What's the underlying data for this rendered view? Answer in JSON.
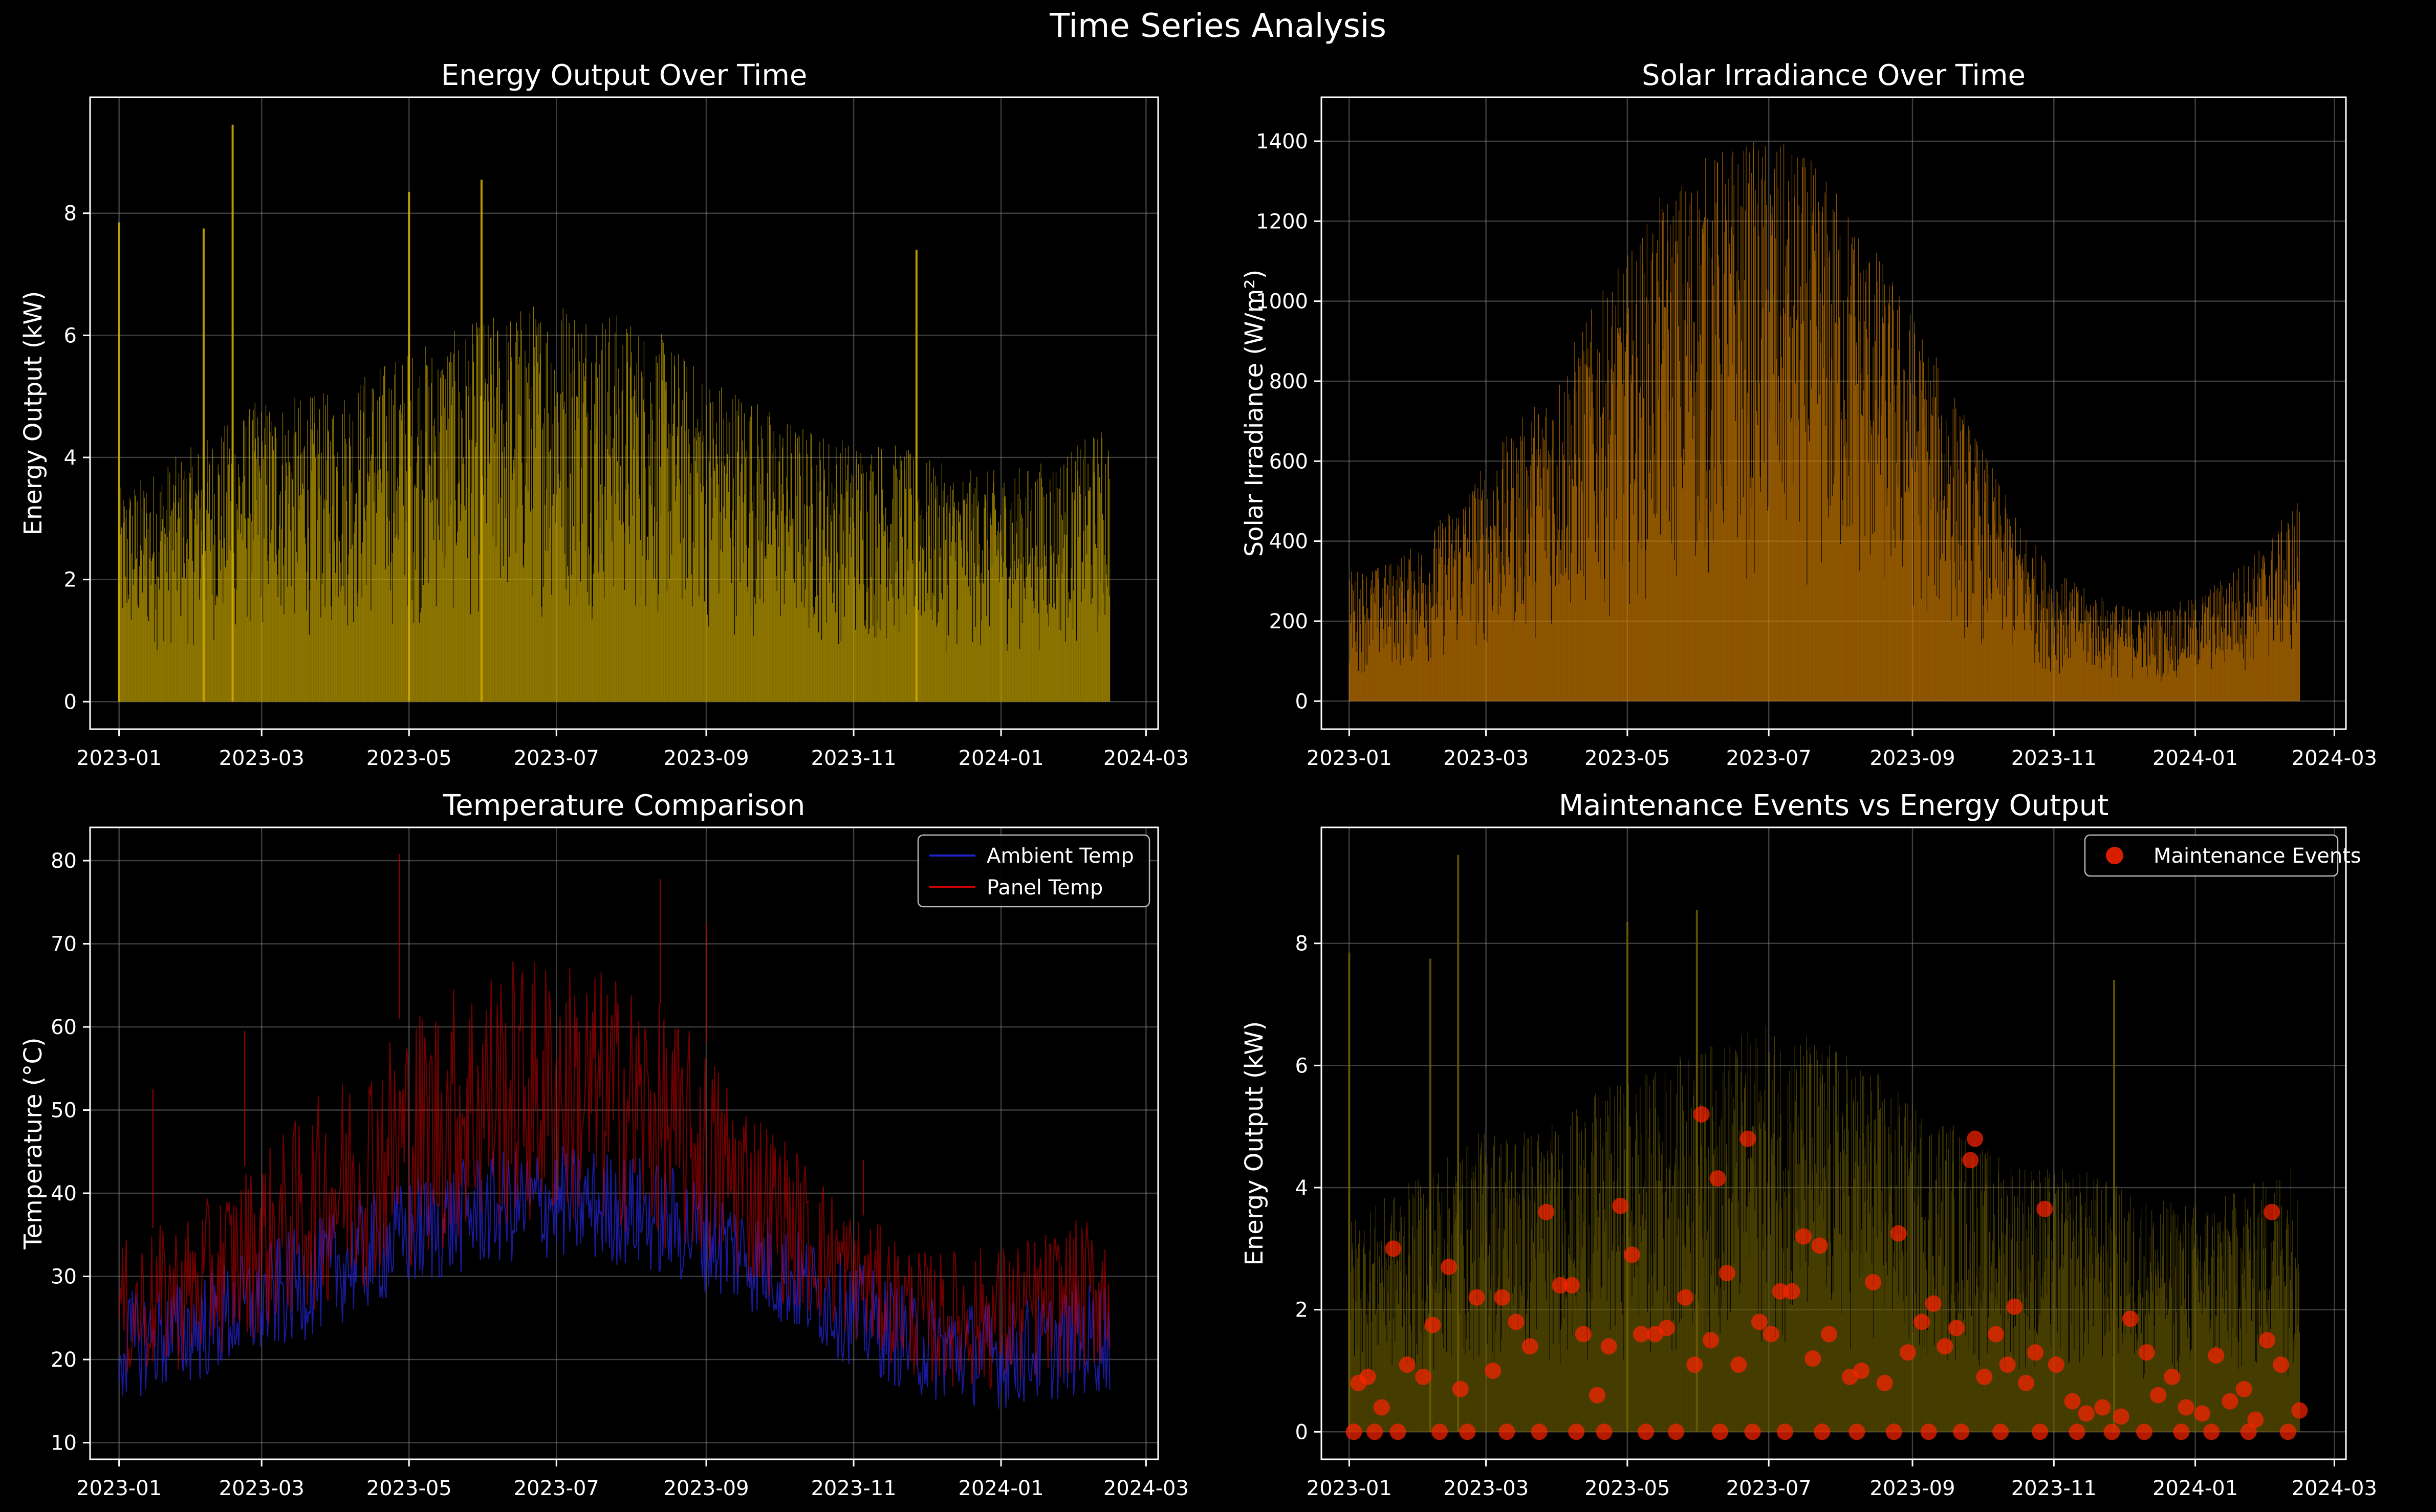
{
  "figure": {
    "title": "Time Series Analysis",
    "background": "#000000",
    "grid_color": "#888888",
    "text_color": "#ffffff"
  },
  "chart_data": [
    {
      "id": "energy",
      "type": "bar",
      "title": "Energy Output Over Time",
      "xlabel": "",
      "ylabel": "Energy Output (kW)",
      "x_range": [
        "2022-12-20",
        "2024-03-06"
      ],
      "xticks": [
        "2023-01",
        "2023-03",
        "2023-05",
        "2023-07",
        "2023-09",
        "2023-11",
        "2024-01",
        "2024-03"
      ],
      "ylim": [
        -0.45,
        9.9
      ],
      "yticks": [
        0,
        2,
        4,
        6,
        8
      ],
      "grid": true,
      "color": "#ccaa00",
      "series": [
        {
          "dates": [
            "2023-01-01",
            "2023-01-15",
            "2023-02-01",
            "2023-02-15",
            "2023-03-01",
            "2023-03-15",
            "2023-04-01",
            "2023-04-15",
            "2023-05-01",
            "2023-05-15",
            "2023-06-01",
            "2023-06-15",
            "2023-07-01",
            "2023-07-15",
            "2023-08-01",
            "2023-08-15",
            "2023-09-01",
            "2023-09-15",
            "2023-10-01",
            "2023-10-15",
            "2023-11-01",
            "2023-11-15",
            "2023-12-01",
            "2023-12-15",
            "2024-01-01",
            "2024-01-15",
            "2024-02-01",
            "2024-02-15"
          ],
          "values": [
            3.5,
            3.8,
            4.2,
            4.6,
            5.0,
            5.0,
            5.1,
            5.5,
            5.8,
            6.0,
            6.3,
            6.5,
            6.7,
            6.6,
            6.3,
            6.0,
            5.4,
            5.2,
            4.7,
            4.5,
            4.3,
            4.3,
            4.0,
            3.8,
            3.8,
            3.9,
            4.2,
            4.6
          ],
          "spikes": [
            [
              "2023-01-01",
              7.85
            ],
            [
              "2023-02-05",
              7.75
            ],
            [
              "2023-02-17",
              9.45
            ],
            [
              "2023-05-01",
              8.35
            ],
            [
              "2023-05-31",
              8.55
            ],
            [
              "2023-11-27",
              7.4
            ]
          ]
        }
      ]
    },
    {
      "id": "irradiance",
      "type": "bar",
      "title": "Solar Irradiance Over Time",
      "xlabel": "",
      "ylabel": "Solar Irradiance (W/m²)",
      "x_range": [
        "2022-12-20",
        "2024-03-06"
      ],
      "xticks": [
        "2023-01",
        "2023-03",
        "2023-05",
        "2023-07",
        "2023-09",
        "2023-11",
        "2024-01",
        "2024-03"
      ],
      "ylim": [
        -70,
        1510
      ],
      "yticks": [
        0,
        200,
        400,
        600,
        800,
        1000,
        1200,
        1400
      ],
      "grid": true,
      "color": "#cc7a00",
      "series": [
        {
          "dates": [
            "2023-01-01",
            "2023-01-15",
            "2023-02-01",
            "2023-02-15",
            "2023-03-01",
            "2023-03-15",
            "2023-04-01",
            "2023-04-15",
            "2023-05-01",
            "2023-05-15",
            "2023-06-01",
            "2023-06-15",
            "2023-07-01",
            "2023-07-15",
            "2023-08-01",
            "2023-08-15",
            "2023-09-01",
            "2023-09-15",
            "2023-10-01",
            "2023-10-15",
            "2023-11-01",
            "2023-11-15",
            "2023-12-01",
            "2023-12-15",
            "2024-01-01",
            "2024-01-15",
            "2024-02-01",
            "2024-02-15"
          ],
          "values": [
            330,
            340,
            400,
            500,
            600,
            700,
            830,
            980,
            1120,
            1260,
            1360,
            1400,
            1410,
            1380,
            1280,
            1150,
            980,
            820,
            640,
            470,
            330,
            280,
            240,
            230,
            260,
            320,
            400,
            520
          ]
        }
      ]
    },
    {
      "id": "temperature",
      "type": "line",
      "title": "Temperature Comparison",
      "xlabel": "",
      "ylabel": "Temperature (°C)",
      "x_range": [
        "2022-12-20",
        "2024-03-06"
      ],
      "xticks": [
        "2023-01",
        "2023-03",
        "2023-05",
        "2023-07",
        "2023-09",
        "2023-11",
        "2024-01",
        "2024-03"
      ],
      "ylim": [
        8,
        84
      ],
      "yticks": [
        10,
        20,
        30,
        40,
        50,
        60,
        70,
        80
      ],
      "grid": true,
      "legend_position": "top-right",
      "series": [
        {
          "name": "Ambient Temp",
          "color": "#2222cc",
          "dates": [
            "2023-01-01",
            "2023-02-01",
            "2023-03-01",
            "2023-04-01",
            "2023-05-01",
            "2023-06-01",
            "2023-07-01",
            "2023-08-01",
            "2023-09-01",
            "2023-10-01",
            "2023-11-01",
            "2023-12-01",
            "2024-01-01",
            "2024-02-15"
          ],
          "low": [
            15,
            17,
            20,
            24,
            28,
            31,
            32,
            31,
            28,
            24,
            19,
            15,
            14,
            16
          ],
          "high": [
            28,
            30,
            34,
            38,
            42,
            45,
            46,
            45,
            42,
            37,
            32,
            28,
            27,
            30
          ]
        },
        {
          "name": "Panel Temp",
          "color": "#cc0000",
          "dates": [
            "2023-01-01",
            "2023-02-01",
            "2023-03-01",
            "2023-04-01",
            "2023-05-01",
            "2023-06-01",
            "2023-07-01",
            "2023-08-01",
            "2023-09-01",
            "2023-10-01",
            "2023-11-01",
            "2023-12-01",
            "2024-01-01",
            "2024-02-15"
          ],
          "low": [
            17,
            19,
            23,
            27,
            31,
            35,
            36,
            35,
            31,
            27,
            22,
            17,
            16,
            19
          ],
          "high": [
            34,
            38,
            45,
            54,
            62,
            68,
            69,
            66,
            58,
            48,
            38,
            33,
            34,
            38
          ],
          "spikes": [
            [
              "2023-01-15",
              52.5
            ],
            [
              "2023-02-22",
              59.5
            ],
            [
              "2023-04-27",
              80.8
            ],
            [
              "2023-08-13",
              77.8
            ],
            [
              "2023-09-01",
              72.5
            ],
            [
              "2023-11-05",
              44
            ]
          ]
        }
      ]
    },
    {
      "id": "maintenance",
      "type": "scatter",
      "title": "Maintenance Events vs Energy Output",
      "xlabel": "",
      "ylabel": "Energy Output (kW)",
      "x_range": [
        "2022-12-20",
        "2024-03-06"
      ],
      "xticks": [
        "2023-01",
        "2023-03",
        "2023-05",
        "2023-07",
        "2023-09",
        "2023-11",
        "2024-01",
        "2024-03"
      ],
      "ylim": [
        -0.45,
        9.9
      ],
      "yticks": [
        0,
        2,
        4,
        6,
        8
      ],
      "grid": true,
      "legend_position": "top-right",
      "background_series_color": "#6b5e00",
      "series": [
        {
          "name": "Maintenance Events",
          "color": "#ff2200",
          "points": [
            [
              "2023-01-20",
              3.0
            ],
            [
              "2023-02-06",
              1.75
            ],
            [
              "2023-02-13",
              2.7
            ],
            [
              "2023-02-25",
              2.2
            ],
            [
              "2023-03-08",
              2.2
            ],
            [
              "2023-03-27",
              3.6
            ],
            [
              "2023-04-02",
              2.4
            ],
            [
              "2023-04-07",
              2.4
            ],
            [
              "2023-04-28",
              3.7
            ],
            [
              "2023-05-07",
              1.6
            ],
            [
              "2023-05-13",
              1.6
            ],
            [
              "2023-05-26",
              2.2
            ],
            [
              "2023-06-02",
              5.2
            ],
            [
              "2023-06-09",
              4.15
            ],
            [
              "2023-06-22",
              4.8
            ],
            [
              "2023-07-06",
              2.3
            ],
            [
              "2023-07-16",
              3.2
            ],
            [
              "2023-07-23",
              3.05
            ],
            [
              "2023-08-15",
              2.45
            ],
            [
              "2023-08-26",
              3.25
            ],
            [
              "2023-09-10",
              2.1
            ],
            [
              "2023-09-26",
              4.45
            ],
            [
              "2023-09-28",
              4.8
            ],
            [
              "2023-10-15",
              2.05
            ],
            [
              "2023-10-28",
              3.65
            ],
            [
              "2023-12-04",
              1.85
            ],
            [
              "2023-12-11",
              1.3
            ],
            [
              "2024-01-10",
              1.25
            ],
            [
              "2024-02-01",
              1.5
            ],
            [
              "2024-02-03",
              3.6
            ],
            [
              "2024-02-15",
              0.35
            ],
            [
              "2023-01-05",
              0.8
            ],
            [
              "2023-01-09",
              0.9
            ],
            [
              "2023-01-15",
              0.4
            ],
            [
              "2023-01-26",
              1.1
            ],
            [
              "2023-02-02",
              0.9
            ],
            [
              "2023-02-18",
              0.7
            ],
            [
              "2023-03-04",
              1.0
            ],
            [
              "2023-03-14",
              1.8
            ],
            [
              "2023-03-20",
              1.4
            ],
            [
              "2023-04-12",
              1.6
            ],
            [
              "2023-04-18",
              0.6
            ],
            [
              "2023-04-23",
              1.4
            ],
            [
              "2023-05-03",
              2.9
            ],
            [
              "2023-05-18",
              1.7
            ],
            [
              "2023-05-30",
              1.1
            ],
            [
              "2023-06-06",
              1.5
            ],
            [
              "2023-06-13",
              2.6
            ],
            [
              "2023-06-18",
              1.1
            ],
            [
              "2023-06-27",
              1.8
            ],
            [
              "2023-07-02",
              1.6
            ],
            [
              "2023-07-11",
              2.3
            ],
            [
              "2023-07-20",
              1.2
            ],
            [
              "2023-07-27",
              1.6
            ],
            [
              "2023-08-05",
              0.9
            ],
            [
              "2023-08-10",
              1.0
            ],
            [
              "2023-08-20",
              0.8
            ],
            [
              "2023-08-30",
              1.3
            ],
            [
              "2023-09-05",
              1.8
            ],
            [
              "2023-09-15",
              1.4
            ],
            [
              "2023-09-20",
              1.7
            ],
            [
              "2023-10-02",
              0.9
            ],
            [
              "2023-10-07",
              1.6
            ],
            [
              "2023-10-12",
              1.1
            ],
            [
              "2023-10-20",
              0.8
            ],
            [
              "2023-10-24",
              1.3
            ],
            [
              "2023-11-02",
              1.1
            ],
            [
              "2023-11-09",
              0.5
            ],
            [
              "2023-11-15",
              0.3
            ],
            [
              "2023-11-22",
              0.4
            ],
            [
              "2023-11-30",
              0.25
            ],
            [
              "2023-12-16",
              0.6
            ],
            [
              "2023-12-22",
              0.9
            ],
            [
              "2023-12-28",
              0.4
            ],
            [
              "2024-01-04",
              0.3
            ],
            [
              "2024-01-16",
              0.5
            ],
            [
              "2024-01-22",
              0.7
            ],
            [
              "2024-01-27",
              0.2
            ],
            [
              "2024-02-07",
              1.1
            ],
            [
              "2023-01-03",
              0.0
            ],
            [
              "2023-01-12",
              0.0
            ],
            [
              "2023-01-22",
              0.0
            ],
            [
              "2023-02-09",
              0.0
            ],
            [
              "2023-02-21",
              0.0
            ],
            [
              "2023-03-10",
              0.0
            ],
            [
              "2023-03-24",
              0.0
            ],
            [
              "2023-04-09",
              0.0
            ],
            [
              "2023-04-21",
              0.0
            ],
            [
              "2023-05-09",
              0.0
            ],
            [
              "2023-05-22",
              0.0
            ],
            [
              "2023-06-10",
              0.0
            ],
            [
              "2023-06-24",
              0.0
            ],
            [
              "2023-07-08",
              0.0
            ],
            [
              "2023-07-24",
              0.0
            ],
            [
              "2023-08-08",
              0.0
            ],
            [
              "2023-08-24",
              0.0
            ],
            [
              "2023-09-08",
              0.0
            ],
            [
              "2023-09-22",
              0.0
            ],
            [
              "2023-10-09",
              0.0
            ],
            [
              "2023-10-26",
              0.0
            ],
            [
              "2023-11-11",
              0.0
            ],
            [
              "2023-11-26",
              0.0
            ],
            [
              "2023-12-10",
              0.0
            ],
            [
              "2023-12-26",
              0.0
            ],
            [
              "2024-01-08",
              0.0
            ],
            [
              "2024-01-24",
              0.0
            ],
            [
              "2024-02-10",
              0.0
            ]
          ]
        }
      ]
    }
  ]
}
